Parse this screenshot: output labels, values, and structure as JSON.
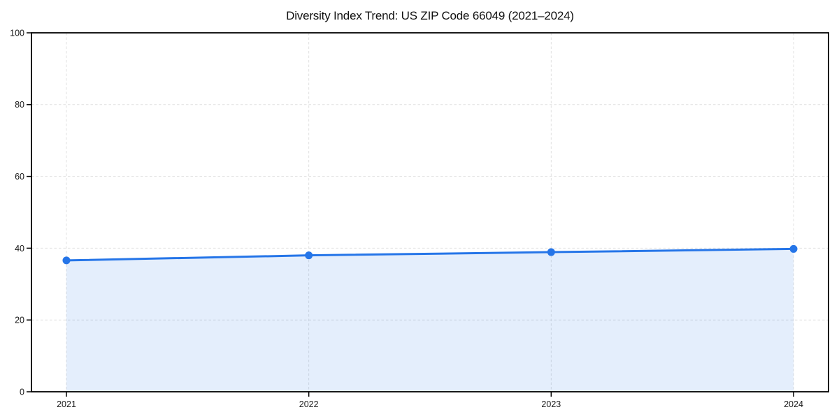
{
  "page": {
    "background": "#ffffff"
  },
  "chart_data": {
    "type": "area",
    "title": "Diversity Index Trend: US ZIP Code 66049 (2021–2024)",
    "x": [
      "2021",
      "2022",
      "2023",
      "2024"
    ],
    "values": [
      36.6,
      38.0,
      38.9,
      39.8
    ],
    "xlabel": "",
    "ylabel": "",
    "ylim": [
      0,
      100
    ],
    "yticks": [
      0,
      20,
      40,
      60,
      80,
      100
    ],
    "grid": true,
    "grid_style": "dashed",
    "legend_position": "none",
    "marker": "circle",
    "colors": {
      "line": "#2575e8",
      "marker": "#2575e8",
      "fill": "#2575e8",
      "fill_opacity": 0.12,
      "grid": "#e0e0e0",
      "spine": "#000000",
      "tick_text": "#1a1a1a",
      "title_text": "#111111"
    }
  }
}
